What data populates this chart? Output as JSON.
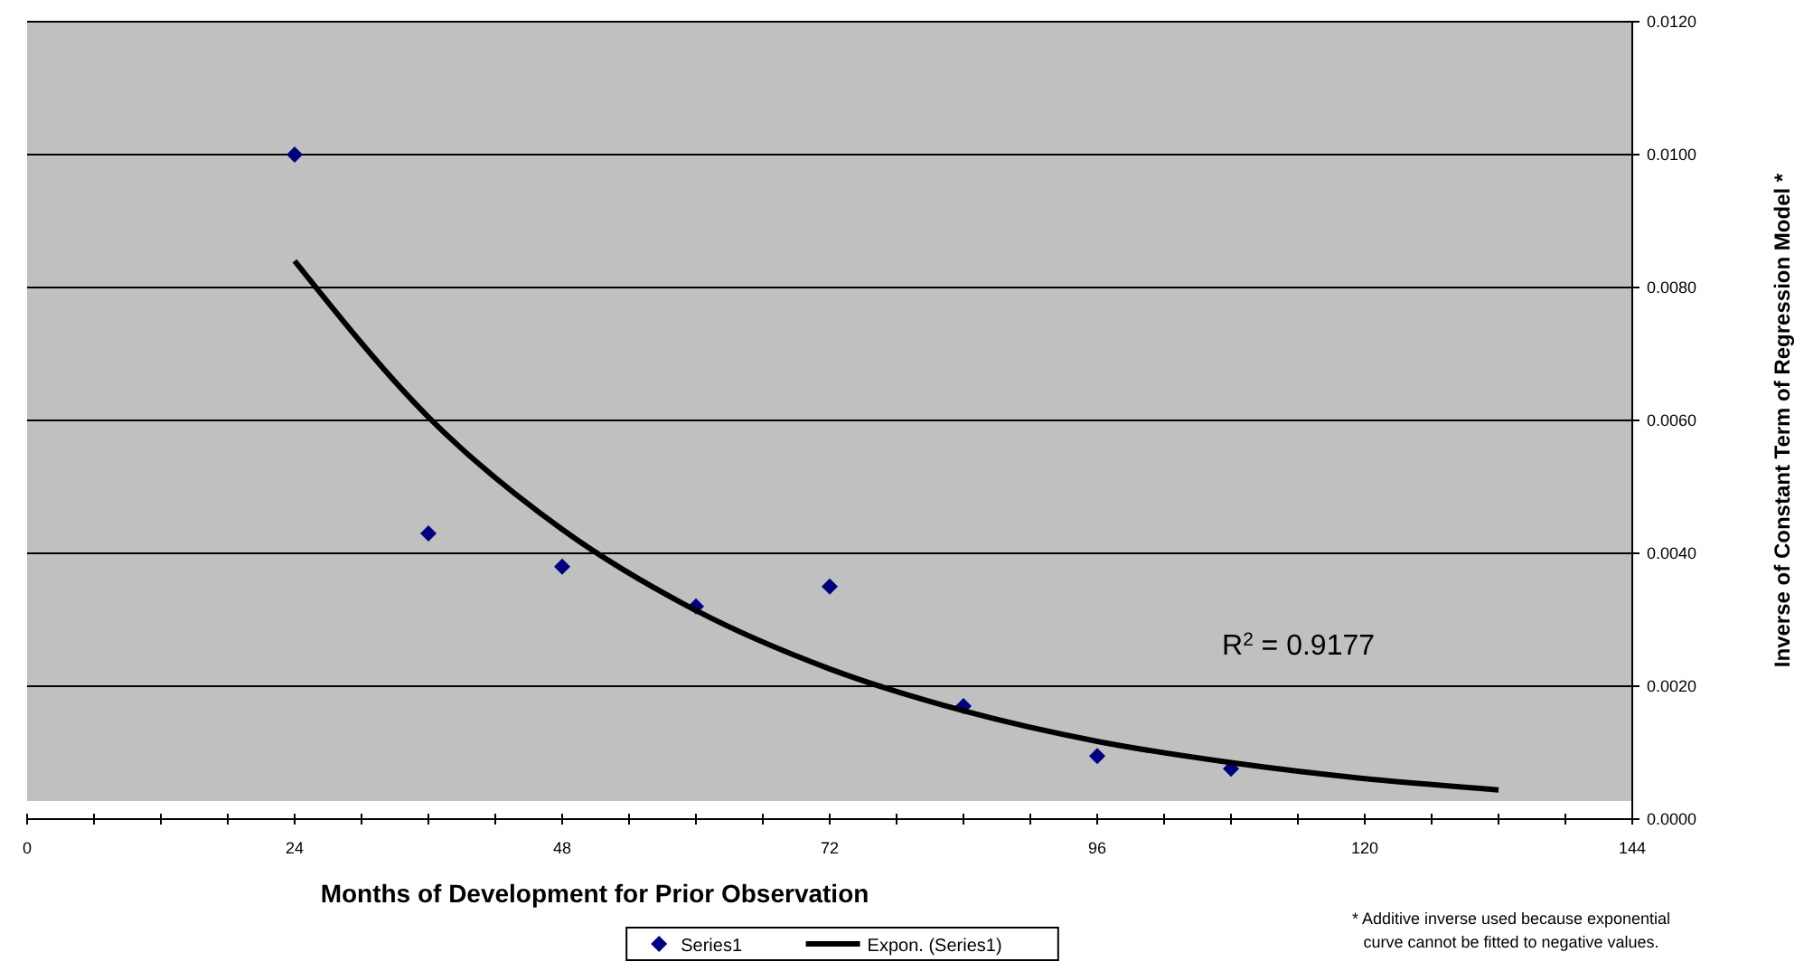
{
  "chart_data": {
    "type": "scatter",
    "xlabel": "Months of Development for Prior Observation",
    "ylabel": "Inverse of Constant Term of Regression Model *",
    "xlim": [
      0,
      144
    ],
    "xticks": [
      0,
      {
        "value": 6,
        "label": null
      },
      {
        "value": 12,
        "label": null
      },
      {
        "value": 18,
        "label": null
      },
      24,
      {
        "value": 30,
        "label": null
      },
      {
        "value": 36,
        "label": null
      },
      {
        "value": 42,
        "label": null
      },
      48,
      {
        "value": 54,
        "label": null
      },
      {
        "value": 60,
        "label": null
      },
      {
        "value": 66,
        "label": null
      },
      72,
      {
        "value": 78,
        "label": null
      },
      {
        "value": 84,
        "label": null
      },
      {
        "value": 90,
        "label": null
      },
      96,
      {
        "value": 102,
        "label": null
      },
      {
        "value": 108,
        "label": null
      },
      {
        "value": 114,
        "label": null
      },
      120,
      {
        "value": 126,
        "label": null
      },
      {
        "value": 132,
        "label": null
      },
      {
        "value": 138,
        "label": null
      },
      144
    ],
    "ylim": [
      0,
      0.012
    ],
    "yticks": [
      {
        "value": 0,
        "label": "0.0000"
      },
      {
        "value": 0.002,
        "label": "0.0020"
      },
      {
        "value": 0.004,
        "label": "0.0040"
      },
      {
        "value": 0.006,
        "label": "0.0060"
      },
      {
        "value": 0.008,
        "label": "0.0080"
      },
      {
        "value": 0.01,
        "label": "0.0100"
      },
      {
        "value": 0.012,
        "label": "0.0120"
      }
    ],
    "grid": "y",
    "legend": "bottom",
    "series": [
      {
        "name": "Series1",
        "marker": "diamond",
        "color": "#000080",
        "x": [
          24,
          36,
          48,
          60,
          72,
          84,
          96,
          108
        ],
        "values": [
          0.01,
          0.0043,
          0.0038,
          0.0032,
          0.0035,
          0.0017,
          0.00095,
          0.00076
        ]
      },
      {
        "name": "Expon. (Series1)",
        "type": "line",
        "marker": "none",
        "line_style": "solid",
        "color": "#000000",
        "x": [
          24,
          36,
          48,
          60,
          72,
          84,
          96,
          108,
          120,
          132
        ],
        "values": [
          0.0084,
          0.00605,
          0.00436,
          0.00314,
          0.00226,
          0.00163,
          0.00117,
          0.00085,
          0.00061,
          0.00044
        ]
      }
    ],
    "annotations": [
      "R$^{2}$ = 0.9177",
      "* Additive inverse used because exponential curve cannot be fitted to negative values."
    ]
  }
}
